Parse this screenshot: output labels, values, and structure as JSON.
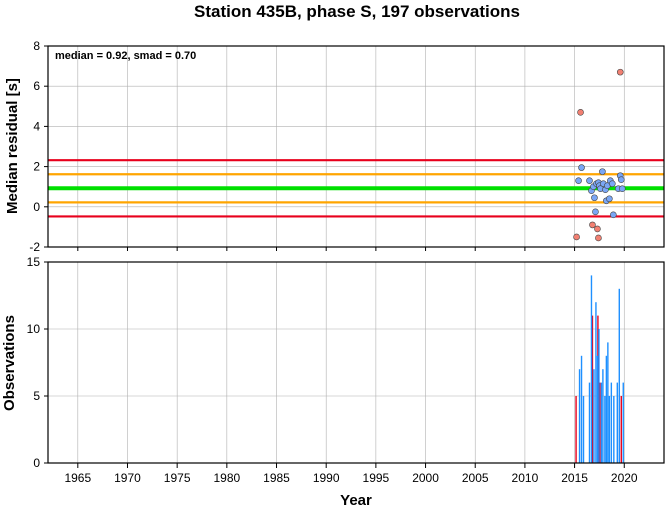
{
  "chart_data": [
    {
      "type": "scatter",
      "title": "Station 435B, phase S, 197 observations",
      "xlabel": "",
      "ylabel": "Median residual [s]",
      "annotation": "median = 0.92, smad = 0.70",
      "xlim": [
        1962,
        2024
      ],
      "ylim": [
        -2,
        8
      ],
      "yticks": [
        "-2",
        "0",
        "2",
        "4",
        "6",
        "8"
      ],
      "grid": true,
      "reference_lines": [
        {
          "value": 0.92,
          "color": "#00e000"
        },
        {
          "value": 1.62,
          "color": "#ffa500"
        },
        {
          "value": 0.22,
          "color": "#ffa500"
        },
        {
          "value": 2.32,
          "color": "#e8001c"
        },
        {
          "value": -0.48,
          "color": "#e8001c"
        }
      ],
      "series": [
        {
          "color": "#f28072",
          "points": [
            [
              2015.6,
              4.7
            ],
            [
              2019.6,
              6.7
            ],
            [
              2015.2,
              -1.5
            ],
            [
              2016.8,
              -0.9
            ],
            [
              2017.3,
              -1.1
            ],
            [
              2017.4,
              -1.55
            ]
          ]
        },
        {
          "color": "#7aa6f5",
          "points": [
            [
              2015.4,
              1.3
            ],
            [
              2015.7,
              1.95
            ],
            [
              2016.5,
              1.3
            ],
            [
              2016.7,
              0.8
            ],
            [
              2016.9,
              1.0
            ],
            [
              2017.0,
              0.45
            ],
            [
              2017.1,
              -0.25
            ],
            [
              2017.2,
              1.15
            ],
            [
              2017.4,
              1.2
            ],
            [
              2017.5,
              1.05
            ],
            [
              2017.6,
              0.9
            ],
            [
              2017.8,
              1.75
            ],
            [
              2017.9,
              1.15
            ],
            [
              2018.1,
              0.85
            ],
            [
              2018.2,
              0.3
            ],
            [
              2018.3,
              1.05
            ],
            [
              2018.5,
              0.4
            ],
            [
              2018.6,
              1.3
            ],
            [
              2018.8,
              1.15
            ],
            [
              2018.9,
              -0.4
            ],
            [
              2019.4,
              0.9
            ],
            [
              2019.6,
              1.55
            ],
            [
              2019.7,
              1.35
            ],
            [
              2019.8,
              0.9
            ]
          ]
        }
      ]
    },
    {
      "type": "bar",
      "xlabel": "Year",
      "ylabel": "Observations",
      "xlim": [
        1962,
        2024
      ],
      "ylim": [
        0,
        15
      ],
      "xticks": [
        "1965",
        "1970",
        "1975",
        "1980",
        "1985",
        "1990",
        "1995",
        "2000",
        "2005",
        "2010",
        "2015",
        "2020"
      ],
      "yticks": [
        "0",
        "5",
        "10",
        "15"
      ],
      "grid": true,
      "series": [
        {
          "color": "#e8001c",
          "bars": [
            [
              2015.15,
              5
            ],
            [
              2016.8,
              11
            ],
            [
              2017.35,
              11
            ],
            [
              2017.55,
              6
            ],
            [
              2019.7,
              5
            ]
          ]
        },
        {
          "color": "#1e90ff",
          "bars": [
            [
              2015.5,
              7
            ],
            [
              2015.7,
              8
            ],
            [
              2015.9,
              5
            ],
            [
              2016.5,
              6
            ],
            [
              2016.7,
              14
            ],
            [
              2016.95,
              7
            ],
            [
              2017.15,
              12
            ],
            [
              2017.3,
              8
            ],
            [
              2017.45,
              10
            ],
            [
              2017.7,
              6
            ],
            [
              2017.85,
              7
            ],
            [
              2018.05,
              5
            ],
            [
              2018.2,
              8
            ],
            [
              2018.35,
              9
            ],
            [
              2018.5,
              5
            ],
            [
              2018.7,
              6
            ],
            [
              2018.95,
              5
            ],
            [
              2019.3,
              6
            ],
            [
              2019.5,
              13
            ],
            [
              2019.9,
              6
            ]
          ]
        }
      ]
    }
  ]
}
